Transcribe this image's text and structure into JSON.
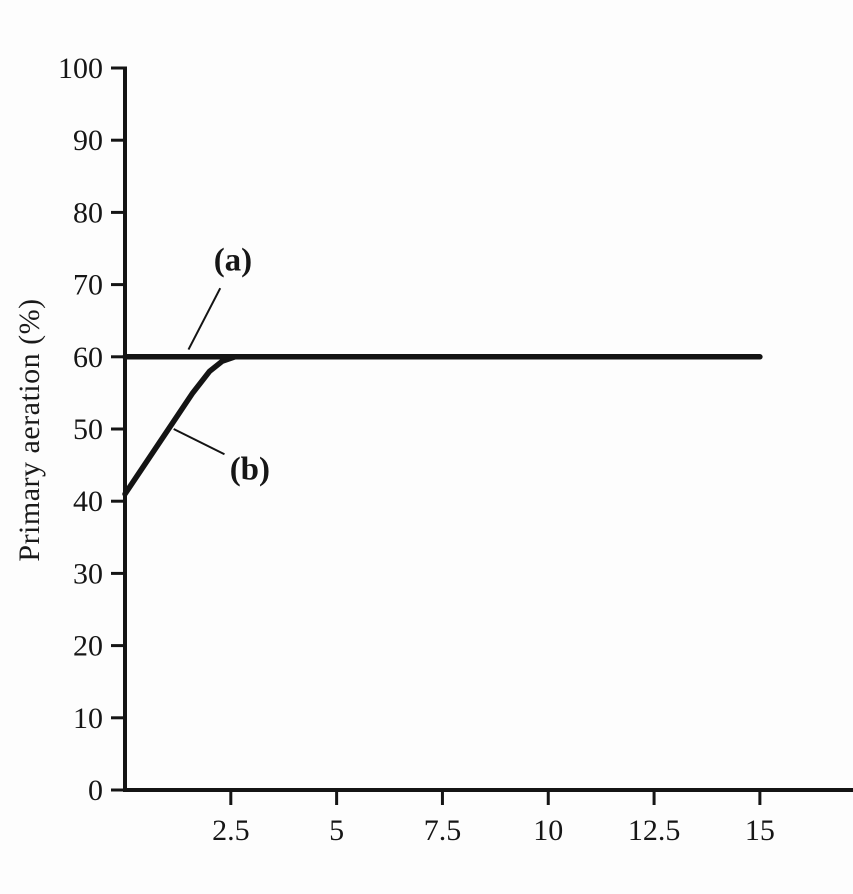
{
  "chart_data": {
    "type": "line",
    "title": "",
    "xlabel": "",
    "ylabel": "Primary aeration (%)",
    "xlim": [
      0,
      17.2
    ],
    "ylim": [
      0,
      100
    ],
    "grid": false,
    "legend_position": "none",
    "x_ticks": [
      {
        "value": 2.5,
        "label": "2.5"
      },
      {
        "value": 5,
        "label": "5"
      },
      {
        "value": 7.5,
        "label": "7.5"
      },
      {
        "value": 10,
        "label": "10"
      },
      {
        "value": 12.5,
        "label": "12.5"
      },
      {
        "value": 15,
        "label": "15"
      }
    ],
    "y_ticks": [
      {
        "value": 0,
        "label": "0"
      },
      {
        "value": 10,
        "label": "10"
      },
      {
        "value": 20,
        "label": "20"
      },
      {
        "value": 30,
        "label": "30"
      },
      {
        "value": 40,
        "label": "40"
      },
      {
        "value": 50,
        "label": "50"
      },
      {
        "value": 60,
        "label": "60"
      },
      {
        "value": 70,
        "label": "70"
      },
      {
        "value": 80,
        "label": "80"
      },
      {
        "value": 90,
        "label": "90"
      },
      {
        "value": 100,
        "label": "100"
      }
    ],
    "series": [
      {
        "name": "(a)",
        "x": [
          0,
          15
        ],
        "y": [
          60,
          60
        ]
      },
      {
        "name": "(b)",
        "x": [
          0,
          0.4,
          0.8,
          1.2,
          1.6,
          2.0,
          2.3,
          2.6
        ],
        "y": [
          41,
          44.5,
          48,
          51.5,
          55,
          58,
          59.4,
          60
        ]
      }
    ],
    "annotations": [
      {
        "label": "(a)",
        "text_x": 2.55,
        "text_y": 73.5,
        "leader_from_x": 2.25,
        "leader_from_y": 69.5,
        "leader_to_x": 1.5,
        "leader_to_y": 61
      },
      {
        "label": "(b)",
        "text_x": 2.95,
        "text_y": 44.5,
        "leader_from_x": 2.35,
        "leader_from_y": 46.5,
        "leader_to_x": 1.15,
        "leader_to_y": 50
      }
    ],
    "line_color": "#141414"
  }
}
